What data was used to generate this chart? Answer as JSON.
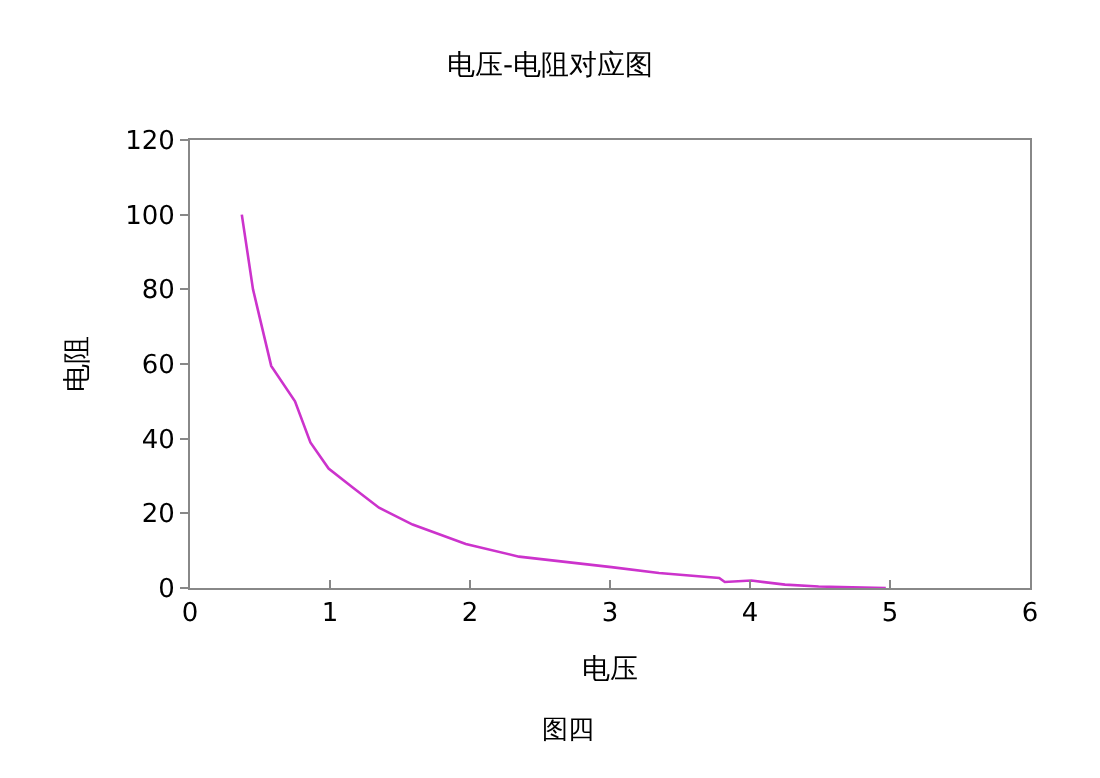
{
  "chart_data": {
    "type": "line",
    "title": "电压-电阻对应图",
    "xlabel": "电压",
    "ylabel": "电阻",
    "annotations": [
      "图四"
    ],
    "series": [
      {
        "color": "#cc33cc",
        "x": [
          0.37,
          0.45,
          0.58,
          0.75,
          0.86,
          0.99,
          1.16,
          1.35,
          1.59,
          1.97,
          2.35,
          3.01,
          3.35,
          3.78,
          3.82,
          4.01,
          4.25,
          4.49,
          4.97
        ],
        "values": [
          100,
          80,
          59.5,
          50,
          39,
          32,
          27,
          21.5,
          17,
          11.8,
          8.4,
          5.6,
          4,
          2.7,
          1.6,
          2,
          0.9,
          0.4,
          0
        ]
      }
    ],
    "xlim": [
      0,
      6
    ],
    "xticks": [
      0,
      1,
      2,
      3,
      4,
      5,
      6
    ],
    "ylim": [
      0,
      120
    ],
    "yticks": [
      0,
      20,
      40,
      60,
      80,
      100,
      120
    ],
    "marker": "none",
    "line_style": "solid"
  }
}
